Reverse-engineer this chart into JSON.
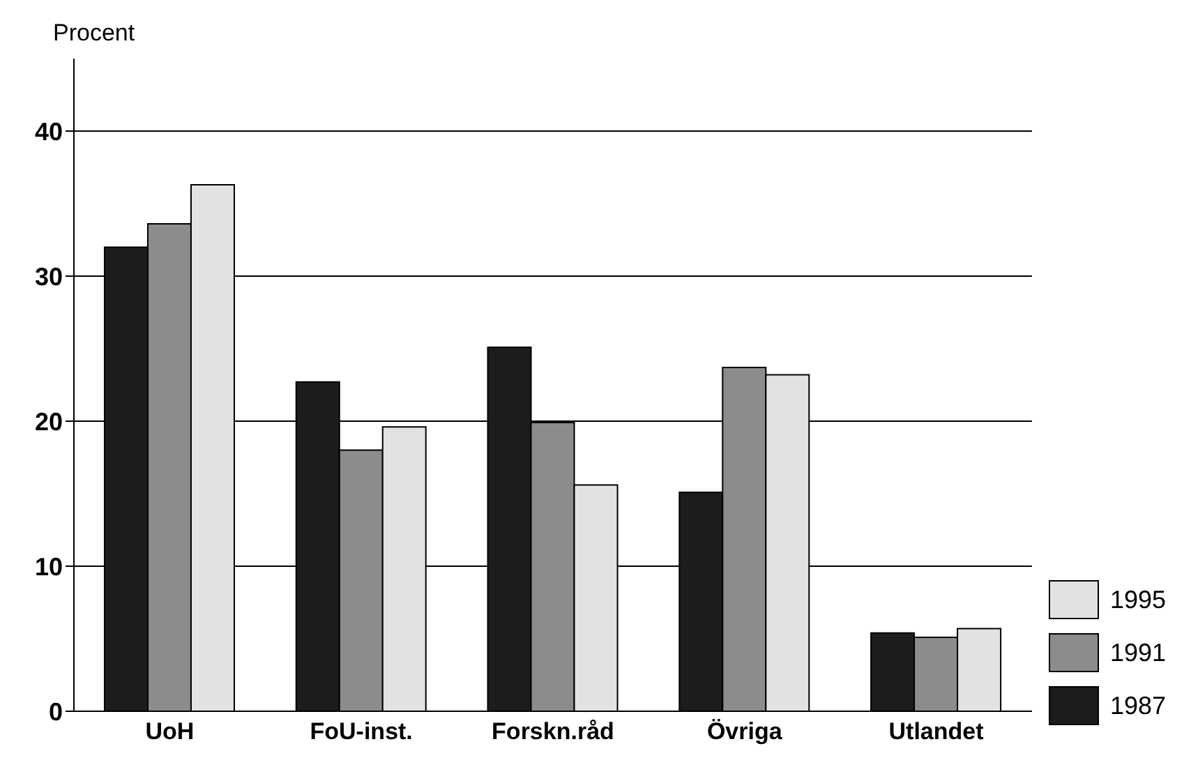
{
  "chart_data": {
    "type": "bar",
    "ylabel": "Procent",
    "categories": [
      "UoH",
      "FoU-inst.",
      "Forskn.råd",
      "Övriga",
      "Utlandet"
    ],
    "series": [
      {
        "name": "1987",
        "color": "#1c1c1c",
        "values": [
          32.0,
          22.7,
          25.1,
          15.1,
          5.4
        ]
      },
      {
        "name": "1991",
        "color": "#8c8c8c",
        "values": [
          33.6,
          18.0,
          19.9,
          23.7,
          5.1
        ]
      },
      {
        "name": "1995",
        "color": "#e2e2e2",
        "values": [
          36.3,
          19.6,
          15.6,
          23.2,
          5.7
        ]
      }
    ],
    "ylim": [
      0,
      45
    ],
    "yticks": [
      0,
      10,
      20,
      30,
      40
    ],
    "grid": "y",
    "legend": "bottom right"
  }
}
